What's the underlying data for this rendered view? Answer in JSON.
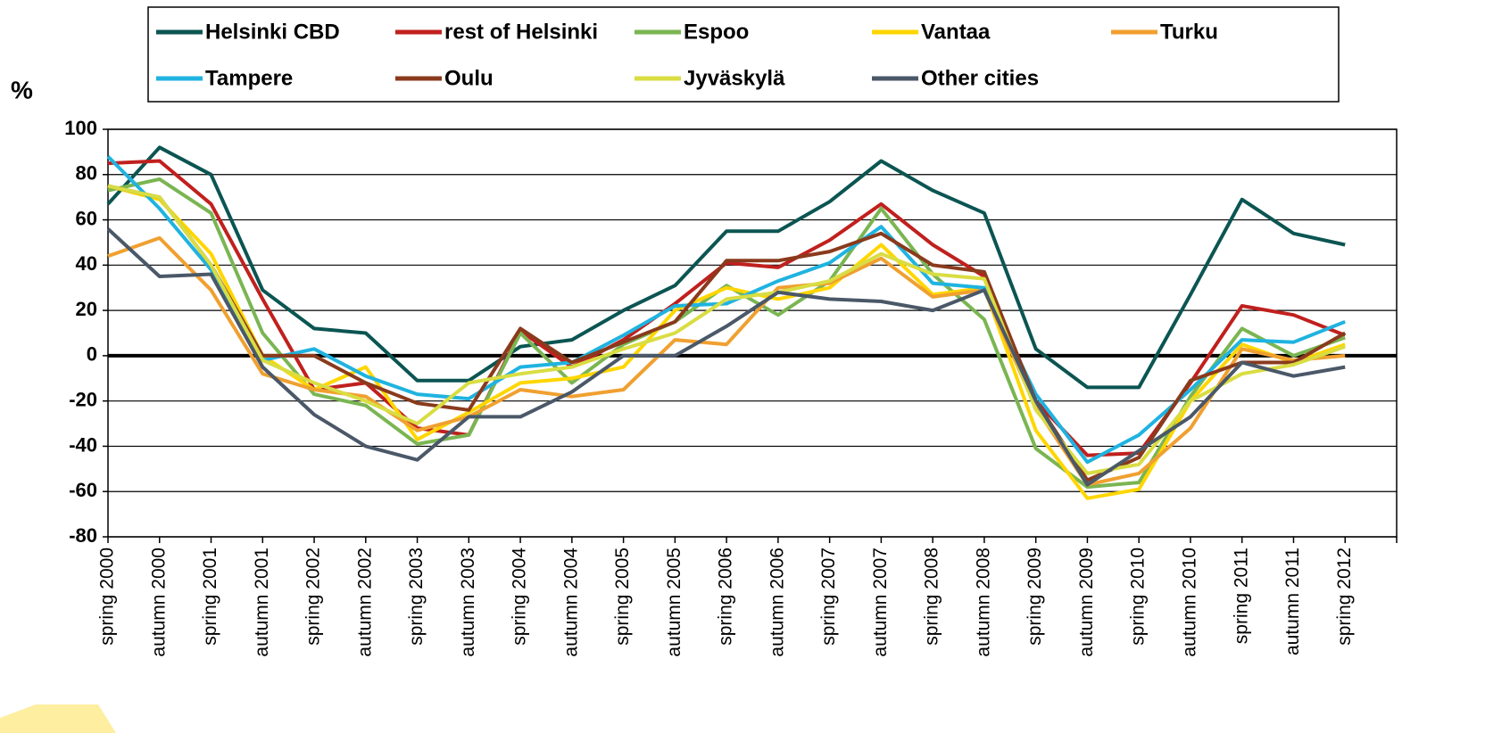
{
  "chart_data": {
    "type": "line",
    "y_label": "%",
    "categories": [
      "spring 2000",
      "autumn 2000",
      "spring 2001",
      "autumn 2001",
      "spring 2002",
      "autumn 2002",
      "spring 2003",
      "autumn 2003",
      "spring 2004",
      "autumn 2004",
      "spring 2005",
      "autumn 2005",
      "spring 2006",
      "autumn 2006",
      "spring 2007",
      "autumn 2007",
      "spring 2008",
      "autumn 2008",
      "spring 2009",
      "autumn 2009",
      "spring 2010",
      "autumn 2010",
      "spring 2011",
      "autumn 2011",
      "spring 2012",
      null
    ],
    "series": [
      {
        "name": "Helsinki CBD",
        "color": "#0b5552",
        "values": [
          67,
          92,
          80,
          29,
          12,
          10,
          -11,
          -11,
          4,
          7,
          20,
          31,
          55,
          55,
          68,
          86,
          73,
          63,
          3,
          -14,
          -14,
          27,
          69,
          54,
          49,
          null
        ]
      },
      {
        "name": "rest of Helsinki",
        "color": "#c0201e",
        "values": [
          85,
          86,
          67,
          25,
          -15,
          -12,
          -32,
          -35,
          11,
          -5,
          7,
          23,
          41,
          39,
          51,
          67,
          49,
          35,
          -20,
          -44,
          -43,
          -12,
          22,
          18,
          9,
          null
        ]
      },
      {
        "name": "Espoo",
        "color": "#7ab552",
        "values": [
          73,
          78,
          63,
          10,
          -17,
          -22,
          -39,
          -35,
          10,
          -12,
          5,
          15,
          31,
          18,
          33,
          65,
          36,
          16,
          -41,
          -58,
          -56,
          -18,
          12,
          0,
          8,
          null
        ]
      },
      {
        "name": "Vantaa",
        "color": "#ffd600",
        "values": [
          75,
          69,
          45,
          0,
          -15,
          -5,
          -37,
          -25,
          -12,
          -10,
          -5,
          20,
          30,
          25,
          30,
          49,
          27,
          30,
          -33,
          -63,
          -59,
          -20,
          5,
          -3,
          5,
          null
        ]
      },
      {
        "name": "Turku",
        "color": "#f0a030",
        "values": [
          44,
          52,
          29,
          -8,
          -15,
          -18,
          -33,
          -27,
          -15,
          -18,
          -15,
          7,
          5,
          30,
          32,
          43,
          26,
          29,
          -23,
          -57,
          -52,
          -32,
          3,
          -2,
          0,
          null
        ]
      },
      {
        "name": "Tampere",
        "color": "#1fb3e0",
        "values": [
          88,
          65,
          38,
          -2,
          3,
          -9,
          -17,
          -19,
          -5,
          -3,
          9,
          22,
          23,
          33,
          41,
          57,
          32,
          30,
          -17,
          -47,
          -35,
          -15,
          7,
          6,
          15,
          null
        ]
      },
      {
        "name": "Oulu",
        "color": "#8a3a1c",
        "values": [
          75,
          70,
          40,
          0,
          0,
          -12,
          -21,
          -24,
          12,
          -3,
          6,
          15,
          42,
          42,
          46,
          54,
          40,
          37,
          -20,
          -55,
          -45,
          -11,
          -3,
          -3,
          10,
          null
        ]
      },
      {
        "name": "Jyväskylä",
        "color": "#d9dd42",
        "values": [
          75,
          70,
          40,
          -2,
          -12,
          -20,
          -30,
          -12,
          -8,
          -5,
          3,
          10,
          25,
          28,
          33,
          45,
          36,
          34,
          -24,
          -52,
          -48,
          -20,
          -8,
          -4,
          4,
          null
        ]
      },
      {
        "name": "Other cities",
        "color": "#4a5868",
        "values": [
          56,
          35,
          36,
          -5,
          -26,
          -40,
          -46,
          -27,
          -27,
          -16,
          0,
          0,
          13,
          28,
          25,
          24,
          20,
          29,
          -20,
          -57,
          -42,
          -27,
          -3,
          -9,
          -5,
          null
        ]
      }
    ],
    "ylim": [
      -80,
      100
    ],
    "yticks": [
      -80,
      -60,
      -40,
      -20,
      0,
      20,
      40,
      60,
      80,
      100
    ],
    "grid": true
  }
}
